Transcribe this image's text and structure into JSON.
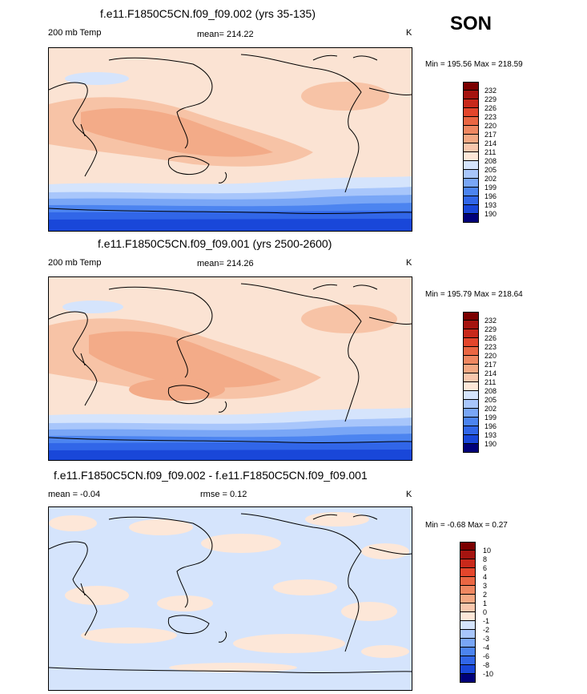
{
  "season": "SON",
  "colors": {
    "abs": [
      "#00007a",
      "#0a2bb8",
      "#1947d9",
      "#3166e8",
      "#4c84f0",
      "#79a6f6",
      "#a8c6fb",
      "#d5e4fc",
      "#fde7d8",
      "#f9c7ad",
      "#f4a883",
      "#ef8761",
      "#ea6643",
      "#e4462c",
      "#c9291b",
      "#a51410",
      "#7b0000"
    ],
    "diff": [
      "#00007a",
      "#0a2bb8",
      "#1947d9",
      "#3166e8",
      "#4c84f0",
      "#79a6f6",
      "#a8c6fb",
      "#d5e4fc",
      "#fde7d8",
      "#f9c7ad",
      "#f4a883",
      "#ef8761",
      "#ea6643",
      "#e4462c",
      "#c9291b",
      "#a51410",
      "#7b0000"
    ]
  },
  "panels": [
    {
      "title": "f.e11.F1850C5CN.f09_f09.002 (yrs 35-135)",
      "left_label": "200 mb Temp",
      "center_label": "mean= 214.22",
      "right_label": "K",
      "minmax": "Min = 195.56 Max = 218.59",
      "colorbar_labels": [
        "232",
        "229",
        "226",
        "223",
        "220",
        "217",
        "214",
        "211",
        "208",
        "205",
        "202",
        "199",
        "196",
        "193",
        "190"
      ]
    },
    {
      "title": "f.e11.F1850C5CN.f09_f09.001 (yrs 2500-2600)",
      "left_label": "200 mb Temp",
      "center_label": "mean= 214.26",
      "right_label": "K",
      "minmax": "Min = 195.79 Max = 218.64",
      "colorbar_labels": [
        "232",
        "229",
        "226",
        "223",
        "220",
        "217",
        "214",
        "211",
        "208",
        "205",
        "202",
        "199",
        "196",
        "193",
        "190"
      ]
    },
    {
      "title": "f.e11.F1850C5CN.f09_f09.002 - f.e11.F1850C5CN.f09_f09.001",
      "left_label": "mean =  -0.04",
      "center_label": "rmse =   0.12",
      "right_label": "K",
      "minmax": "Min =  -0.68 Max =   0.27",
      "colorbar_labels": [
        "10",
        "8",
        "6",
        "4",
        "3",
        "2",
        "1",
        "0",
        "-1",
        "-2",
        "-3",
        "-4",
        "-6",
        "-8",
        "-10"
      ]
    }
  ]
}
